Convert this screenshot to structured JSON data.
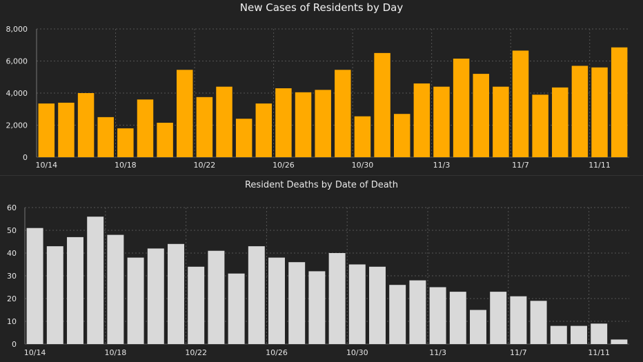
{
  "colors": {
    "background": "#222222",
    "cases_bar": "#ffaa00",
    "deaths_bar": "#d9d9d9",
    "grid": "#555555"
  },
  "chart_data": [
    {
      "type": "bar",
      "title": "New Cases of Residents by Day",
      "xlabel": "",
      "ylabel": "",
      "ylim": [
        0,
        8000
      ],
      "yticks": [
        "0",
        "2,000",
        "4,000",
        "6,000",
        "8,000"
      ],
      "grid": true,
      "x_tick_labels": [
        {
          "index": 0,
          "label": "10/14"
        },
        {
          "index": 4,
          "label": "10/18"
        },
        {
          "index": 8,
          "label": "10/22"
        },
        {
          "index": 12,
          "label": "10/26"
        },
        {
          "index": 16,
          "label": "10/30"
        },
        {
          "index": 20,
          "label": "11/3"
        },
        {
          "index": 24,
          "label": "11/7"
        },
        {
          "index": 28,
          "label": "11/11"
        }
      ],
      "categories": [
        "10/14",
        "10/15",
        "10/16",
        "10/17",
        "10/18",
        "10/19",
        "10/20",
        "10/21",
        "10/22",
        "10/23",
        "10/24",
        "10/25",
        "10/26",
        "10/27",
        "10/28",
        "10/29",
        "10/30",
        "10/31",
        "11/1",
        "11/2",
        "11/3",
        "11/4",
        "11/5",
        "11/6",
        "11/7",
        "11/8",
        "11/9",
        "11/10",
        "11/11",
        "11/12"
      ],
      "values": [
        3350,
        3400,
        4000,
        2500,
        1800,
        3600,
        2150,
        5450,
        3750,
        4400,
        2400,
        3350,
        4300,
        4050,
        4200,
        5450,
        2550,
        6500,
        2700,
        4600,
        4400,
        6150,
        5200,
        4400,
        6650,
        3900,
        4350,
        5700,
        5600,
        6850
      ]
    },
    {
      "type": "bar",
      "title": "Resident Deaths by Date of Death",
      "xlabel": "",
      "ylabel": "",
      "ylim": [
        0,
        60
      ],
      "yticks": [
        "0",
        "10",
        "20",
        "30",
        "40",
        "50",
        "60"
      ],
      "grid": true,
      "x_tick_labels": [
        {
          "index": 0,
          "label": "10/14"
        },
        {
          "index": 4,
          "label": "10/18"
        },
        {
          "index": 8,
          "label": "10/22"
        },
        {
          "index": 12,
          "label": "10/26"
        },
        {
          "index": 16,
          "label": "10/30"
        },
        {
          "index": 20,
          "label": "11/3"
        },
        {
          "index": 24,
          "label": "11/7"
        },
        {
          "index": 28,
          "label": "11/11"
        }
      ],
      "categories": [
        "10/14",
        "10/15",
        "10/16",
        "10/17",
        "10/18",
        "10/19",
        "10/20",
        "10/21",
        "10/22",
        "10/23",
        "10/24",
        "10/25",
        "10/26",
        "10/27",
        "10/28",
        "10/29",
        "10/30",
        "10/31",
        "11/1",
        "11/2",
        "11/3",
        "11/4",
        "11/5",
        "11/6",
        "11/7",
        "11/8",
        "11/9",
        "11/10",
        "11/11",
        "11/12"
      ],
      "values": [
        51,
        43,
        47,
        56,
        48,
        38,
        42,
        44,
        34,
        41,
        31,
        43,
        38,
        36,
        32,
        40,
        35,
        34,
        26,
        28,
        25,
        23,
        15,
        23,
        21,
        19,
        8,
        8,
        9,
        2
      ]
    }
  ]
}
